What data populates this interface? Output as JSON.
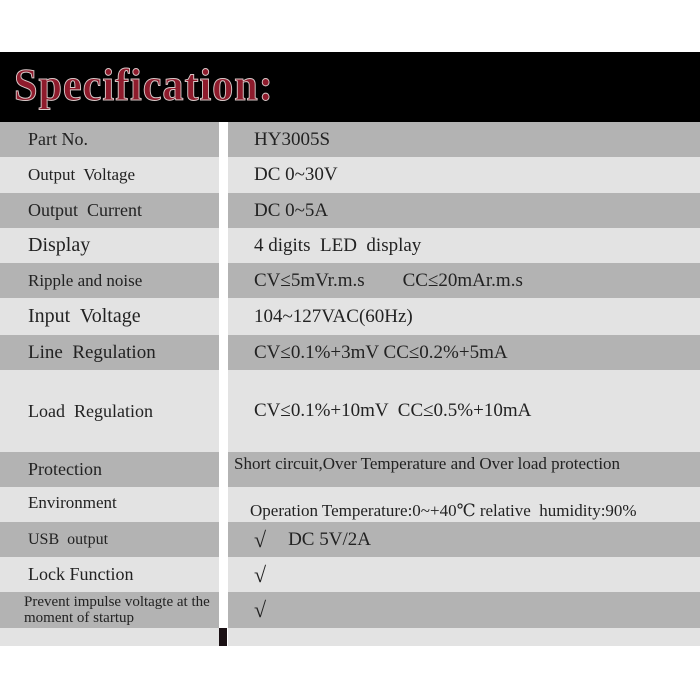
{
  "title": "Specification:",
  "rows": [
    {
      "label": "Part No.",
      "value": "HY3005S"
    },
    {
      "label": "Output  Voltage",
      "value": "DC 0~30V"
    },
    {
      "label": "Output  Current",
      "value": "DC 0~5A"
    },
    {
      "label": "Display",
      "value": "4 digits  LED  display"
    },
    {
      "label": "Ripple and noise",
      "value": "CV≤5mVr.m.s        CC≤20mAr.m.s"
    },
    {
      "label": "Input  Voltage",
      "value": "104~127VAC(60Hz)"
    },
    {
      "label": "Line  Regulation",
      "value": "CV≤0.1%+3mV CC≤0.2%+5mA"
    },
    {
      "label": "Load  Regulation",
      "value": "CV≤0.1%+10mV  CC≤0.5%+10mA"
    },
    {
      "label": "Protection",
      "value": "Short circuit,Over Temperature and Over load protection"
    },
    {
      "label": "Environment",
      "value": "Operation Temperature:0~+40℃ relative  humidity:90%"
    },
    {
      "label": "USB  output",
      "check": "√",
      "value": "DC 5V/2A"
    },
    {
      "label": "Lock Function",
      "check": "√",
      "value": ""
    },
    {
      "label": "Prevent impulse voltagte at the moment of startup",
      "check": "√",
      "value": ""
    }
  ]
}
